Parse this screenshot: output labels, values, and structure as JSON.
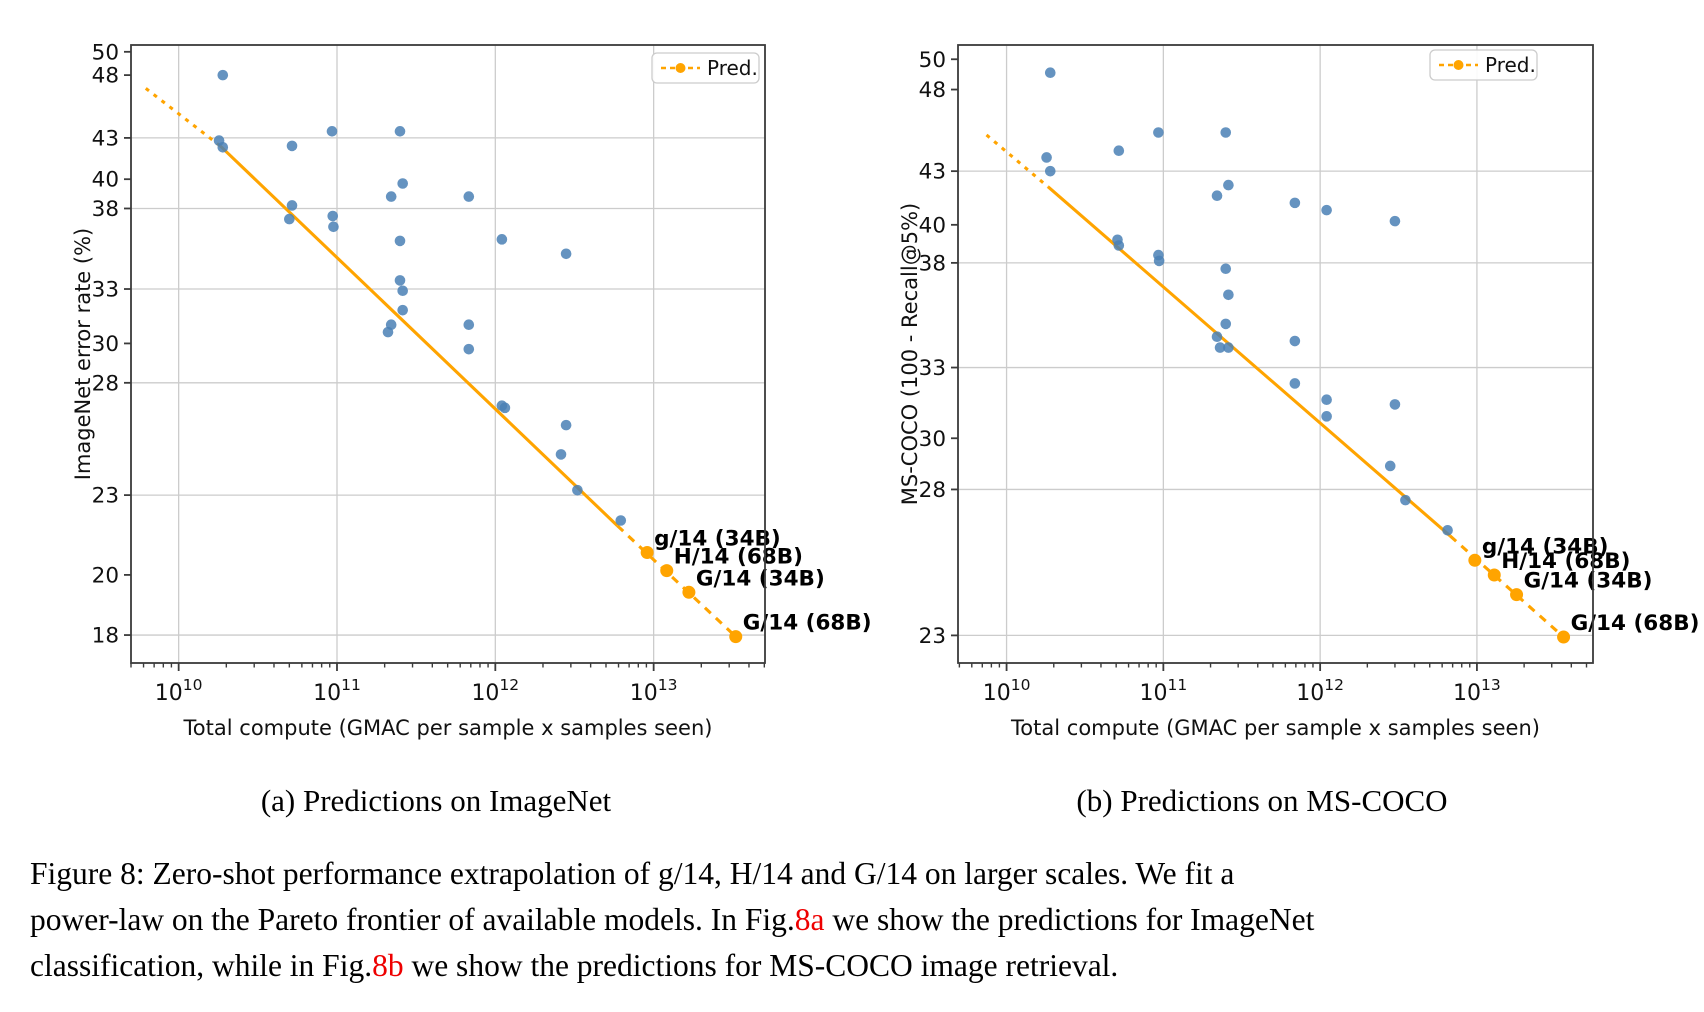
{
  "figure": {
    "subcaption_a": "(a) Predictions on ImageNet",
    "subcaption_b": "(b) Predictions on MS-COCO",
    "caption_line1": "Figure 8: Zero-shot performance extrapolation of g/14, H/14 and G/14 on larger scales. We fit a",
    "caption_line2_pre": "power-law on the Pareto frontier of available models. In Fig.",
    "caption_line2_ref": "8a",
    "caption_line2_post": " we show the predictions for ImageNet",
    "caption_line3_pre": "classification, while in Fig.",
    "caption_line3_ref": "8b",
    "caption_line3_post": " we show the predictions for MS-COCO image retrieval."
  },
  "colors": {
    "scatter": "#4a80b5",
    "fit": "#ffa400",
    "grid": "#cccccc",
    "spine": "#3b3b3b",
    "text": "#000000",
    "ref_red": "#ee0000",
    "legend_border": "#cccccc"
  },
  "chart_data": [
    {
      "type": "scatter",
      "name": "imagenet-predictions",
      "xlabel": "Total compute (GMAC per sample x samples seen)",
      "ylabel": "ImageNet error rate (%)",
      "xscale": "log",
      "yscale": "log",
      "xlim": [
        5000000000.0,
        50500000000000.0
      ],
      "ylim": [
        17.14,
        50.6
      ],
      "xtick_exponents": [
        10,
        11,
        12,
        13
      ],
      "yticks": [
        50,
        48,
        43,
        40,
        38,
        33,
        30,
        28,
        23,
        20,
        18
      ],
      "ygrid": [
        43,
        38,
        33,
        28,
        23,
        18
      ],
      "legend_label": "Pred.",
      "points": [
        [
          19000000000.0,
          48.0
        ],
        [
          18000000000.0,
          42.8
        ],
        [
          19000000000.0,
          42.3
        ],
        [
          52000000000.0,
          42.4
        ],
        [
          52000000000.0,
          38.2
        ],
        [
          50000000000.0,
          37.3
        ],
        [
          93000000000.0,
          43.5
        ],
        [
          94000000000.0,
          37.5
        ],
        [
          95000000000.0,
          36.8
        ],
        [
          250000000000.0,
          43.5
        ],
        [
          260000000000.0,
          39.7
        ],
        [
          220000000000.0,
          38.8
        ],
        [
          250000000000.0,
          35.9
        ],
        [
          250000000000.0,
          33.5
        ],
        [
          260000000000.0,
          32.9
        ],
        [
          260000000000.0,
          31.8
        ],
        [
          220000000000.0,
          31.0
        ],
        [
          210000000000.0,
          30.6
        ],
        [
          680000000000.0,
          38.8
        ],
        [
          680000000000.0,
          31.0
        ],
        [
          680000000000.0,
          29.7
        ],
        [
          1100000000000.0,
          36.0
        ],
        [
          1100000000000.0,
          26.9
        ],
        [
          1150000000000.0,
          26.8
        ],
        [
          2800000000000.0,
          35.1
        ],
        [
          2800000000000.0,
          26.0
        ],
        [
          2600000000000.0,
          24.7
        ],
        [
          3300000000000.0,
          23.2
        ],
        [
          6200000000000.0,
          22.0
        ]
      ],
      "fit": {
        "dashed_head": [
          [
            6200000000.0,
            46.9
          ],
          [
            18300000000.0,
            42.4
          ]
        ],
        "solid": [
          [
            18300000000.0,
            42.4
          ],
          [
            5900000000000.0,
            21.8
          ]
        ],
        "dashed_tail": [
          [
            5900000000000.0,
            21.8
          ],
          [
            33000000000000.0,
            17.95
          ]
        ]
      },
      "predictions": [
        {
          "label": "g/14 (34B)",
          "x": 9100000000000.0,
          "y": 20.8
        },
        {
          "label": "H/14 (68B)",
          "x": 12100000000000.0,
          "y": 20.15
        },
        {
          "label": "G/14 (34B)",
          "x": 16700000000000.0,
          "y": 19.4
        },
        {
          "label": "G/14 (68B)",
          "x": 33000000000000.0,
          "y": 17.95
        }
      ]
    },
    {
      "type": "scatter",
      "name": "mscoco-predictions",
      "xlabel": "Total compute (GMAC per sample x samples seen)",
      "ylabel": "MS-COCO (100 - Recall@5%)",
      "xscale": "log",
      "yscale": "log",
      "xlim": [
        4900000000.0,
        55000000000000.0
      ],
      "ylim": [
        22.16,
        50.97
      ],
      "xtick_exponents": [
        10,
        11,
        12,
        13
      ],
      "yticks": [
        50,
        48,
        43,
        40,
        38,
        33,
        30,
        28,
        23
      ],
      "ygrid": [
        43,
        38,
        33,
        28,
        23
      ],
      "legend_label": "Pred.",
      "points": [
        [
          19000000000.0,
          49.1
        ],
        [
          18000000000.0,
          43.8
        ],
        [
          19000000000.0,
          43.0
        ],
        [
          52000000000.0,
          44.2
        ],
        [
          51000000000.0,
          39.2
        ],
        [
          52000000000.0,
          38.9
        ],
        [
          93000000000.0,
          45.3
        ],
        [
          93000000000.0,
          38.4
        ],
        [
          94000000000.0,
          38.1
        ],
        [
          250000000000.0,
          45.3
        ],
        [
          260000000000.0,
          42.2
        ],
        [
          220000000000.0,
          41.6
        ],
        [
          250000000000.0,
          37.7
        ],
        [
          260000000000.0,
          36.4
        ],
        [
          250000000000.0,
          35.0
        ],
        [
          220000000000.0,
          34.4
        ],
        [
          230000000000.0,
          33.9
        ],
        [
          260000000000.0,
          33.9
        ],
        [
          690000000000.0,
          41.2
        ],
        [
          690000000000.0,
          34.2
        ],
        [
          690000000000.0,
          32.3
        ],
        [
          1100000000000.0,
          40.8
        ],
        [
          1100000000000.0,
          31.6
        ],
        [
          1100000000000.0,
          30.9
        ],
        [
          3000000000000.0,
          40.2
        ],
        [
          3000000000000.0,
          31.4
        ],
        [
          2800000000000.0,
          28.9
        ],
        [
          3500000000000.0,
          27.6
        ],
        [
          6500000000000.0,
          26.5
        ]
      ],
      "fit": {
        "dashed_head": [
          [
            7450000000.0,
            45.15
          ],
          [
            18400000000.0,
            42.1
          ]
        ],
        "solid": [
          [
            18400000000.0,
            42.1
          ],
          [
            6750000000000.0,
            26.3
          ]
        ],
        "dashed_tail": [
          [
            6750000000000.0,
            26.3
          ],
          [
            35700000000000.0,
            22.95
          ]
        ]
      },
      "predictions": [
        {
          "label": "g/14 (34B)",
          "x": 9700000000000.0,
          "y": 25.45
        },
        {
          "label": "H/14 (68B)",
          "x": 12900000000000.0,
          "y": 24.95
        },
        {
          "label": "G/14 (34B)",
          "x": 17900000000000.0,
          "y": 24.3
        },
        {
          "label": "G/14 (68B)",
          "x": 35700000000000.0,
          "y": 22.95
        }
      ]
    }
  ]
}
